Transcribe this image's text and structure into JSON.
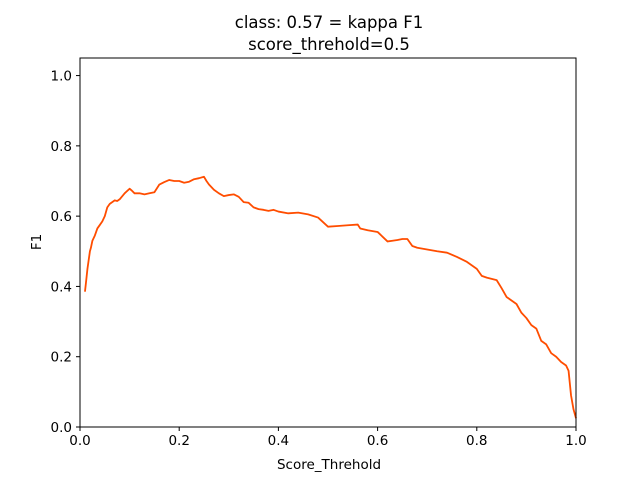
{
  "chart_data": {
    "type": "line",
    "title": "class: 0.57 = kappa F1",
    "subtitle": "score_threhold=0.5",
    "xlabel": "Score_Threhold",
    "ylabel": "F1",
    "xlim": [
      0.0,
      1.0
    ],
    "ylim": [
      0.0,
      1.05
    ],
    "xticks": [
      "0.0",
      "0.2",
      "0.4",
      "0.6",
      "0.8",
      "1.0"
    ],
    "yticks": [
      "0.0",
      "0.2",
      "0.4",
      "0.6",
      "0.8",
      "1.0"
    ],
    "grid": false,
    "line_color": "#ff4d00",
    "series": [
      {
        "x": [
          0.01,
          0.012,
          0.015,
          0.018,
          0.02,
          0.022,
          0.025,
          0.03,
          0.035,
          0.04,
          0.045,
          0.05,
          0.055,
          0.06,
          0.065,
          0.07,
          0.075,
          0.08,
          0.09,
          0.1,
          0.105,
          0.11,
          0.12,
          0.13,
          0.14,
          0.15,
          0.16,
          0.17,
          0.18,
          0.19,
          0.2,
          0.21,
          0.22,
          0.23,
          0.24,
          0.25,
          0.255,
          0.26,
          0.27,
          0.28,
          0.29,
          0.3,
          0.31,
          0.32,
          0.33,
          0.34,
          0.35,
          0.36,
          0.37,
          0.38,
          0.39,
          0.4,
          0.42,
          0.44,
          0.46,
          0.48,
          0.5,
          0.52,
          0.54,
          0.56,
          0.565,
          0.58,
          0.6,
          0.62,
          0.63,
          0.64,
          0.65,
          0.66,
          0.67,
          0.68,
          0.7,
          0.72,
          0.74,
          0.76,
          0.78,
          0.8,
          0.81,
          0.82,
          0.84,
          0.85,
          0.86,
          0.87,
          0.88,
          0.89,
          0.9,
          0.91,
          0.92,
          0.93,
          0.94,
          0.95,
          0.96,
          0.97,
          0.98,
          0.985,
          0.99,
          0.995,
          1.0
        ],
        "y": [
          0.385,
          0.41,
          0.45,
          0.48,
          0.5,
          0.51,
          0.53,
          0.545,
          0.565,
          0.575,
          0.585,
          0.6,
          0.625,
          0.635,
          0.64,
          0.645,
          0.643,
          0.648,
          0.665,
          0.678,
          0.672,
          0.665,
          0.665,
          0.662,
          0.665,
          0.668,
          0.69,
          0.697,
          0.703,
          0.7,
          0.7,
          0.695,
          0.698,
          0.705,
          0.708,
          0.712,
          0.7,
          0.69,
          0.675,
          0.665,
          0.657,
          0.66,
          0.662,
          0.655,
          0.64,
          0.638,
          0.625,
          0.62,
          0.618,
          0.615,
          0.618,
          0.613,
          0.608,
          0.61,
          0.605,
          0.596,
          0.57,
          0.572,
          0.574,
          0.576,
          0.565,
          0.56,
          0.555,
          0.528,
          0.53,
          0.532,
          0.535,
          0.535,
          0.515,
          0.51,
          0.505,
          0.5,
          0.496,
          0.484,
          0.47,
          0.45,
          0.43,
          0.425,
          0.418,
          0.395,
          0.37,
          0.36,
          0.35,
          0.325,
          0.31,
          0.29,
          0.28,
          0.245,
          0.235,
          0.21,
          0.2,
          0.185,
          0.175,
          0.16,
          0.09,
          0.05,
          0.025
        ]
      }
    ]
  }
}
